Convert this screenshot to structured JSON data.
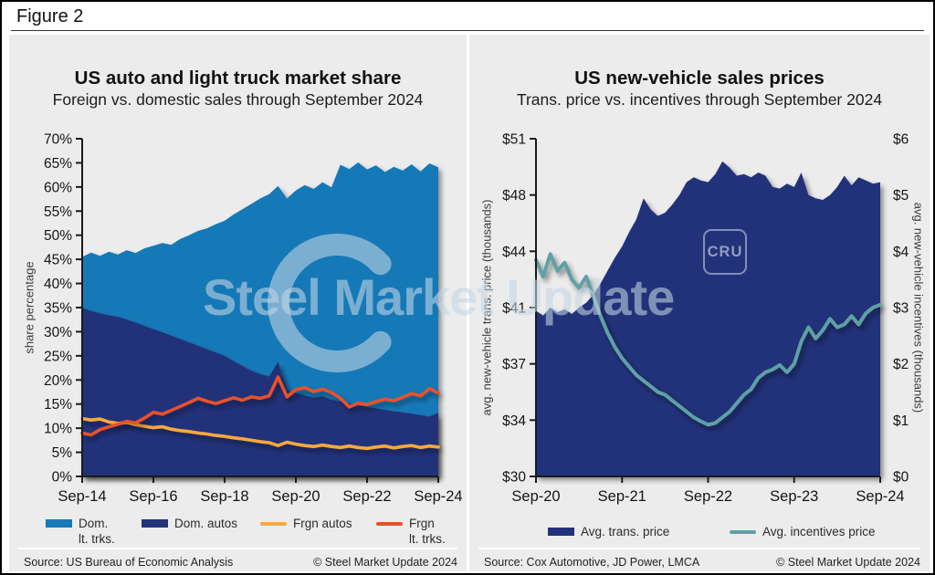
{
  "figure_label": "Figure 2",
  "watermark_text": "Steel Market Update",
  "cru_badge": "CRU",
  "colors": {
    "dom_lt_trks": "#1779b7",
    "dom_autos": "#24327a",
    "frgn_autos": "#f8a83e",
    "frgn_lt_trks": "#e9512b",
    "trans_price": "#24327a",
    "incentives": "#5fa0a5",
    "axis": "#1a1a1a",
    "panel_bg": "#ececec"
  },
  "chart_data": [
    {
      "type": "area",
      "title": "US auto and light truck market share",
      "subtitle": "Foreign vs. domestic sales through September 2024",
      "ylabel": "share percentage",
      "x_ticks": [
        "Sep-14",
        "Sep-16",
        "Sep-18",
        "Sep-20",
        "Sep-22",
        "Sep-24"
      ],
      "x_range": [
        "Sep-14",
        "Sep-24"
      ],
      "points_per_year": 4,
      "y_axis": {
        "min": 0,
        "max": 70,
        "tick_values": [
          0,
          5,
          10,
          15,
          20,
          25,
          30,
          35,
          40,
          45,
          50,
          55,
          60,
          65,
          70
        ],
        "tick_labels": [
          "0%",
          "5%",
          "10%",
          "15%",
          "20%",
          "25%",
          "30%",
          "35%",
          "40%",
          "45%",
          "50%",
          "55%",
          "60%",
          "65%",
          "70%"
        ]
      },
      "series": [
        {
          "name": "Dom. lt. trks.",
          "legend_lines": [
            "Dom.",
            "lt. trks."
          ],
          "type": "area",
          "color": "#1779b7",
          "values": [
            45.5,
            46.4,
            45.7,
            46.6,
            46.0,
            46.9,
            46.3,
            47.3,
            47.8,
            48.4,
            48.0,
            49.2,
            50.0,
            50.9,
            51.4,
            52.3,
            53.0,
            54.3,
            55.4,
            56.5,
            57.6,
            58.5,
            60.2,
            57.6,
            59.3,
            60.4,
            59.6,
            61.0,
            59.9,
            64.6,
            63.7,
            65.1,
            63.6,
            64.5,
            63.1,
            64.2,
            63.4,
            64.7,
            63.2,
            64.9,
            64.1
          ]
        },
        {
          "name": "Dom. autos",
          "legend_lines": [
            "Dom. autos"
          ],
          "type": "area",
          "color": "#24327a",
          "values": [
            35.0,
            34.3,
            33.8,
            33.4,
            33.1,
            32.5,
            31.9,
            31.2,
            30.5,
            29.9,
            29.2,
            28.5,
            27.8,
            27.1,
            26.4,
            25.7,
            25.0,
            23.9,
            22.9,
            21.9,
            21.2,
            20.7,
            23.8,
            17.9,
            17.3,
            16.8,
            16.3,
            16.6,
            15.9,
            15.5,
            15.1,
            14.7,
            14.4,
            14.1,
            13.8,
            13.5,
            13.3,
            13.0,
            12.7,
            12.4,
            13.2
          ]
        },
        {
          "name": "Frgn autos",
          "legend_lines": [
            "Frgn autos"
          ],
          "type": "line",
          "color": "#f8a83e",
          "width": 3.6,
          "values": [
            12.0,
            11.7,
            11.9,
            11.3,
            11.0,
            11.2,
            10.7,
            10.4,
            10.1,
            10.3,
            9.8,
            9.5,
            9.3,
            9.0,
            8.8,
            8.5,
            8.3,
            8.0,
            7.8,
            7.5,
            7.2,
            7.0,
            6.4,
            7.1,
            6.7,
            6.4,
            6.2,
            6.5,
            6.2,
            6.0,
            6.3,
            6.0,
            5.8,
            6.1,
            6.3,
            5.9,
            6.2,
            6.4,
            6.0,
            6.3,
            6.1
          ]
        },
        {
          "name": "Frgn lt. trks.",
          "legend_lines": [
            "Frgn",
            "lt. trks."
          ],
          "type": "line",
          "color": "#e9512b",
          "width": 3.6,
          "values": [
            9.0,
            8.6,
            9.7,
            10.3,
            10.8,
            11.4,
            11.1,
            12.1,
            13.3,
            12.9,
            13.7,
            14.5,
            15.3,
            16.2,
            15.6,
            15.1,
            15.7,
            16.3,
            15.8,
            16.5,
            16.2,
            16.7,
            20.6,
            16.5,
            18.0,
            18.4,
            17.6,
            18.1,
            17.4,
            16.2,
            14.4,
            15.2,
            14.9,
            15.5,
            16.0,
            15.7,
            16.4,
            17.2,
            16.7,
            18.2,
            17.3
          ]
        }
      ],
      "source": "Source: US Bureau of Economic Analysis",
      "copyright": "© Steel Market Update 2024"
    },
    {
      "type": "area",
      "title": "US new-vehicle sales prices",
      "subtitle": "Trans. price vs. incentives through September 2024",
      "ylabel_left": "avg. new-vehicle trans. price (thousands)",
      "ylabel_right": "avg. new-vehicle incentives (thousands)",
      "x_ticks": [
        "Sep-20",
        "Sep-21",
        "Sep-22",
        "Sep-23",
        "Sep-24"
      ],
      "x_range": [
        "Sep-20",
        "Sep-24"
      ],
      "points_per_year": 12,
      "y_left": {
        "min": 30,
        "max": 51,
        "tick_values": [
          30,
          33.5,
          37,
          40.5,
          44,
          47.5,
          51
        ],
        "tick_labels": [
          "$30",
          "$34",
          "$37",
          "$41",
          "$44",
          "$48",
          "$51"
        ]
      },
      "y_right": {
        "min": 0,
        "max": 6,
        "tick_values": [
          0,
          1,
          2,
          3,
          4,
          5,
          6
        ],
        "tick_labels": [
          "$0",
          "$1",
          "$2",
          "$3",
          "$4",
          "$5",
          "$6"
        ]
      },
      "series": [
        {
          "name": "Avg. trans. price",
          "legend_lines": [
            "Avg. trans. price"
          ],
          "type": "area",
          "axis": "left",
          "color": "#24327a",
          "values": [
            40.3,
            40.0,
            40.5,
            40.2,
            40.4,
            40.1,
            40.5,
            40.8,
            41.3,
            42.0,
            42.8,
            43.6,
            44.3,
            45.2,
            46.0,
            47.3,
            46.6,
            46.2,
            46.4,
            46.9,
            47.5,
            48.3,
            48.6,
            48.4,
            48.3,
            48.8,
            49.6,
            49.2,
            48.7,
            48.8,
            48.6,
            48.9,
            48.7,
            48.0,
            47.9,
            48.2,
            48.0,
            48.9,
            47.5,
            47.3,
            47.2,
            47.5,
            48.0,
            48.7,
            48.1,
            48.6,
            48.4,
            48.2,
            48.3
          ]
        },
        {
          "name": "Avg. incentives price",
          "legend_lines": [
            "Avg. incentives price"
          ],
          "type": "line",
          "axis": "right",
          "color": "#5fa0a5",
          "width": 4,
          "values": [
            3.85,
            3.55,
            3.95,
            3.65,
            3.8,
            3.5,
            3.35,
            3.55,
            3.2,
            2.85,
            2.55,
            2.3,
            2.1,
            1.95,
            1.8,
            1.7,
            1.6,
            1.5,
            1.45,
            1.35,
            1.25,
            1.15,
            1.05,
            0.98,
            0.92,
            0.95,
            1.05,
            1.15,
            1.3,
            1.45,
            1.55,
            1.75,
            1.85,
            1.9,
            1.98,
            1.85,
            2.0,
            2.4,
            2.65,
            2.45,
            2.6,
            2.8,
            2.65,
            2.7,
            2.85,
            2.7,
            2.9,
            3.0,
            3.05
          ]
        }
      ],
      "source": "Source: Cox Automotive, JD Power, LMCA",
      "copyright": "© Steel Market Update 2024"
    }
  ]
}
